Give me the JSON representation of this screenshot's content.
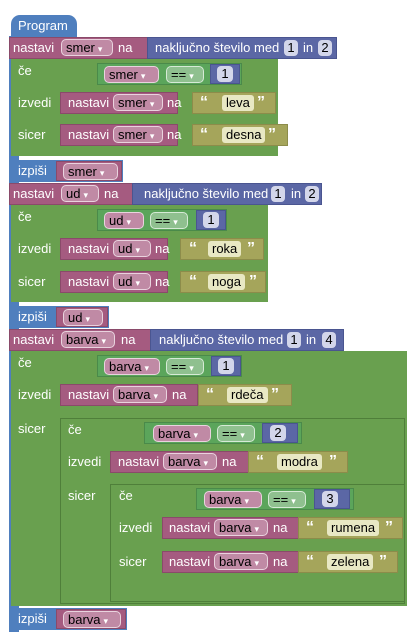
{
  "title": "Program",
  "kw": {
    "set": "nastavi",
    "to": "na",
    "if": "če",
    "do": "izvedi",
    "else": "sicer",
    "print": "izpiši",
    "rand": "naključno število med",
    "and": "in",
    "eq": "=="
  },
  "vars": {
    "smer": "smer",
    "ud": "ud",
    "barva": "barva"
  },
  "nums": {
    "n1": "1",
    "n2": "2",
    "n3": "3",
    "n4": "4"
  },
  "strs": {
    "leva": "leva",
    "desna": "desna",
    "roka": "roka",
    "noga": "noga",
    "rdeca": "rdeča",
    "modra": "modra",
    "rumena": "rumena",
    "zelena": "zelena"
  },
  "arrow": "▾",
  "quote_open": "“",
  "quote_close": "”"
}
